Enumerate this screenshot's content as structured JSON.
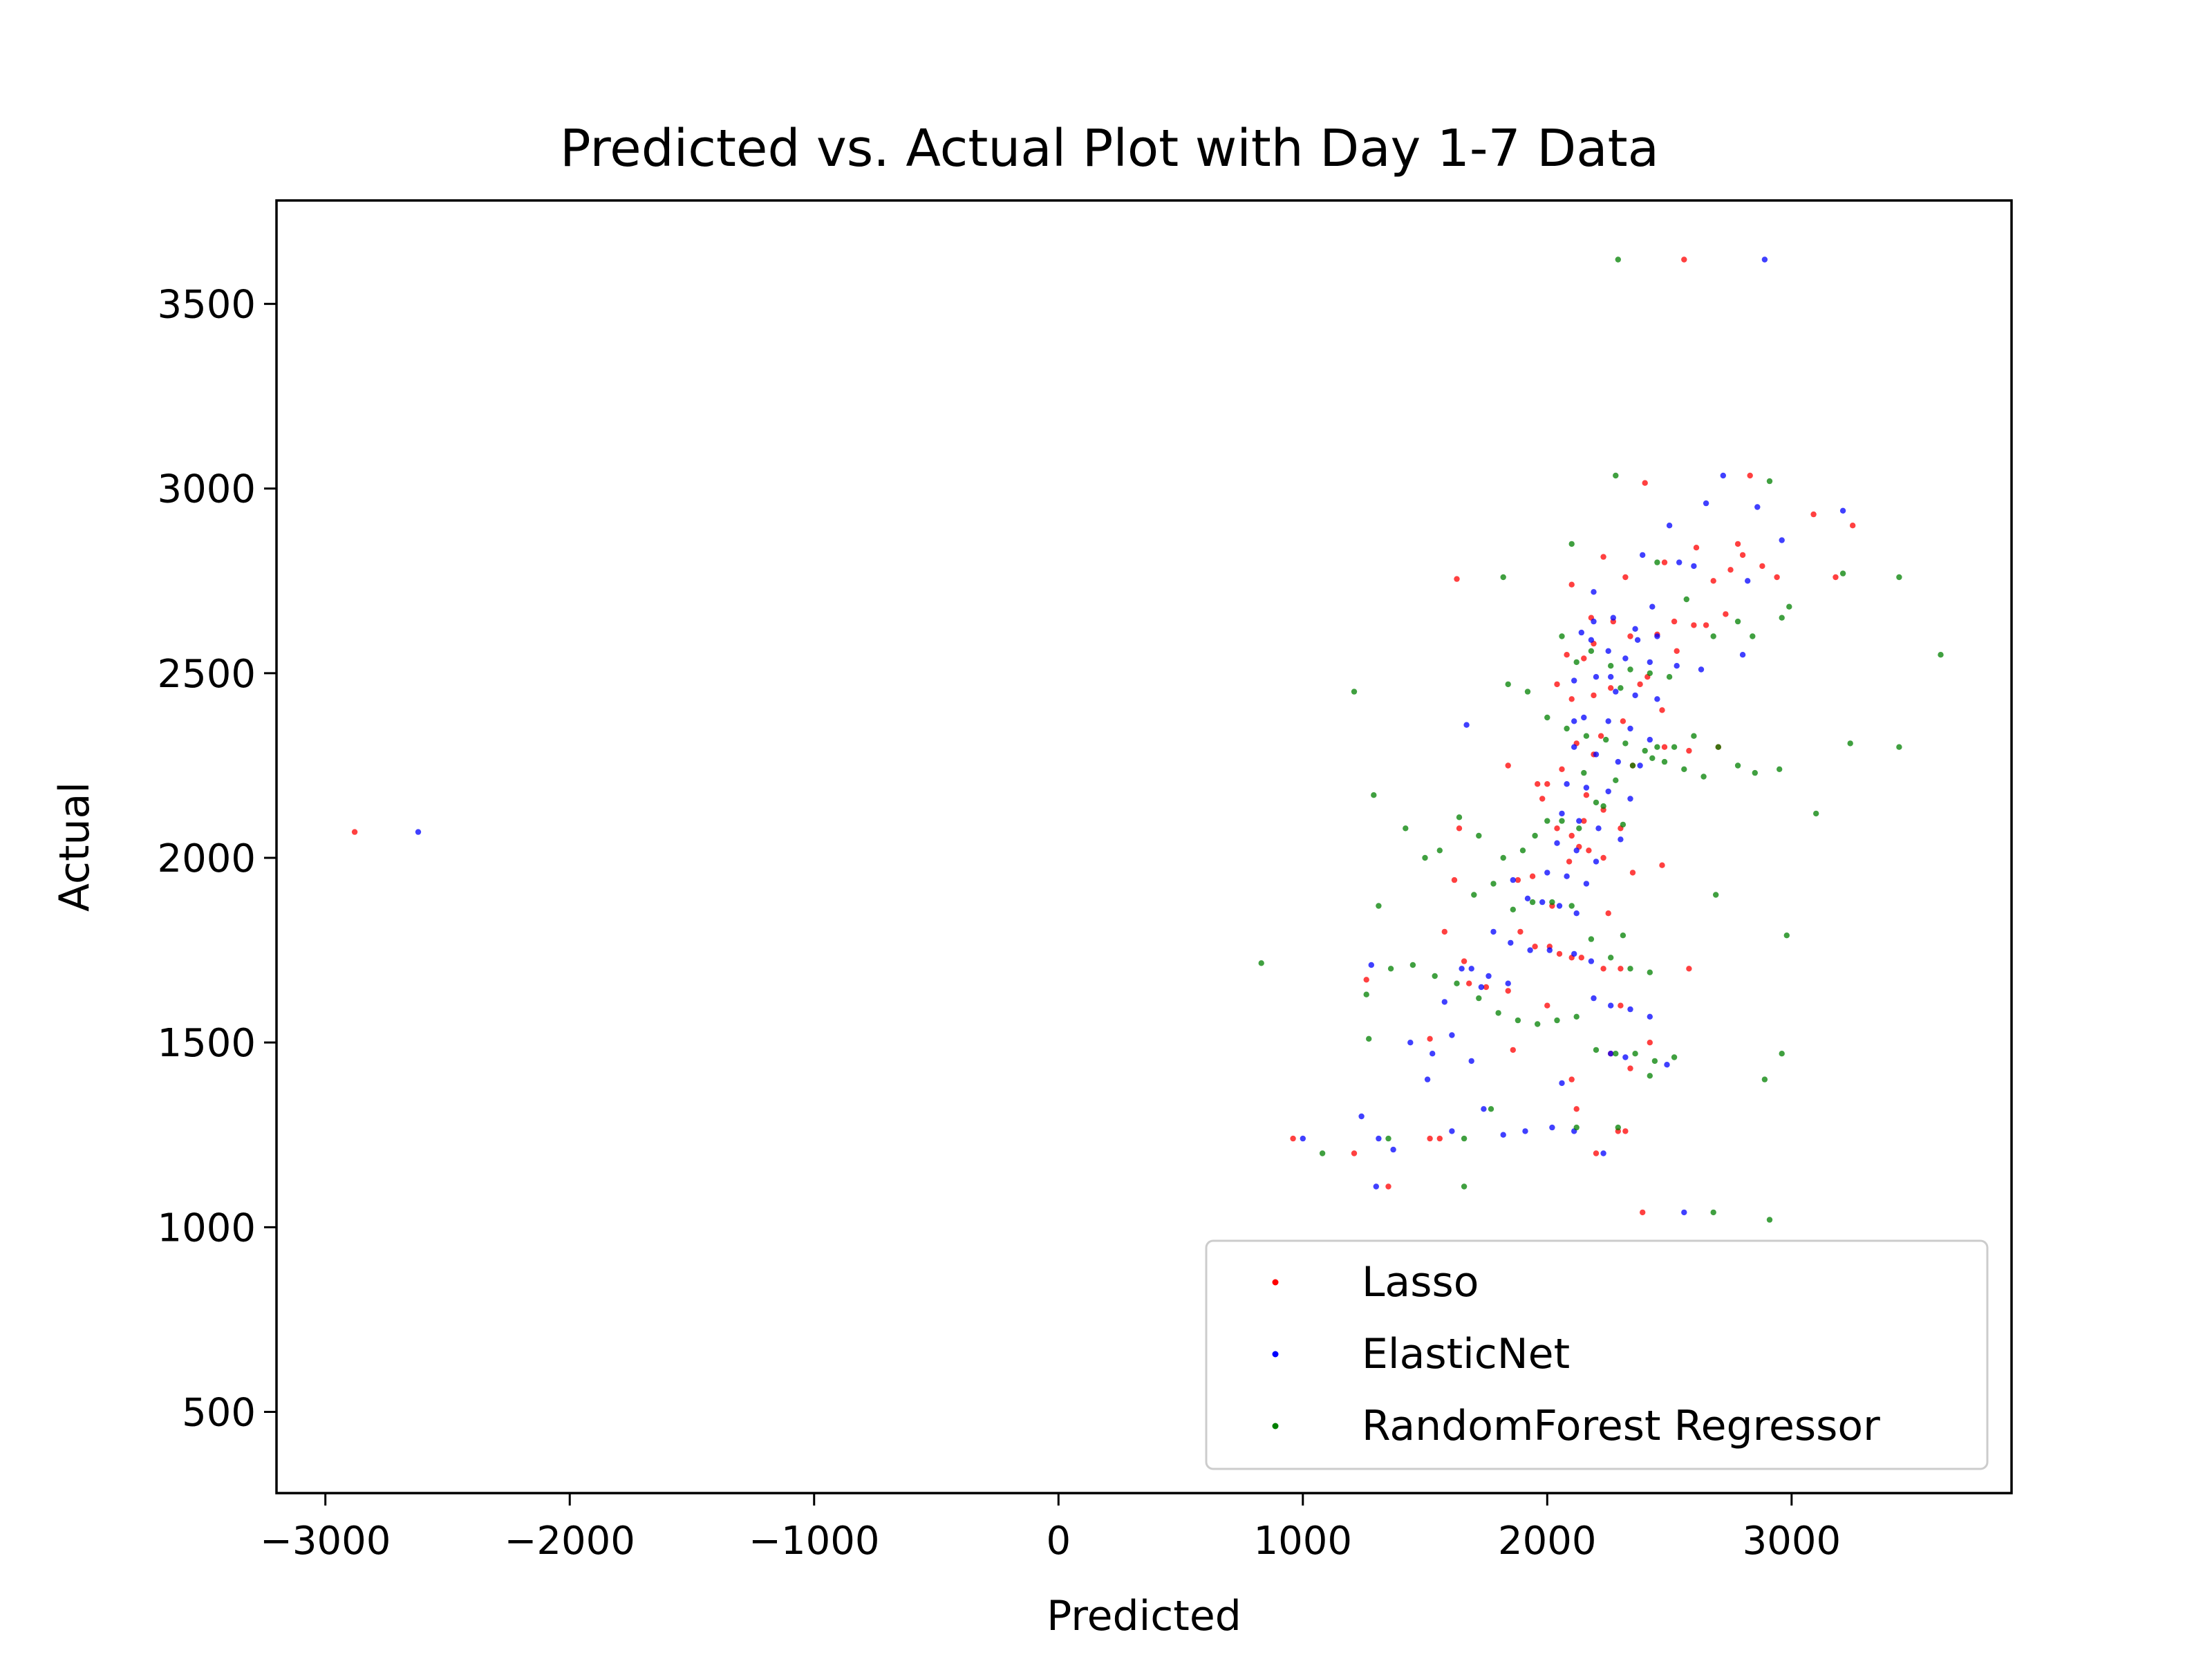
{
  "chart_data": {
    "type": "scatter",
    "title": "Predicted vs. Actual Plot with Day 1-7 Data",
    "xlabel": "Predicted",
    "ylabel": "Actual",
    "xlim": [
      -3200,
      3900
    ],
    "ylim": [
      280,
      3780
    ],
    "xticks": [
      -3000,
      -2000,
      -1000,
      0,
      1000,
      2000,
      3000
    ],
    "xtick_labels": [
      "−3000",
      "−2000",
      "−1000",
      "0",
      "1000",
      "2000",
      "3000"
    ],
    "yticks": [
      500,
      1000,
      1500,
      2000,
      2500,
      3000,
      3500
    ],
    "ytick_labels": [
      "500",
      "1000",
      "1500",
      "2000",
      "2500",
      "3000",
      "3500"
    ],
    "grid": false,
    "legend_position": "lower-right",
    "series": [
      {
        "name": "Lasso",
        "color": "#ff0000",
        "x": [
          2560,
          2830,
          3090,
          3250,
          2400,
          1630,
          2100,
          2320,
          2230,
          2180,
          2270,
          2450,
          2530,
          2600,
          2730,
          2780,
          2520,
          2190,
          2340,
          2080,
          2150,
          2260,
          2410,
          2040,
          2380,
          2100,
          2470,
          2310,
          2220,
          2120,
          2190,
          2700,
          2580,
          2480,
          2350,
          2060,
          2000,
          1980,
          2160,
          2230,
          2150,
          2300,
          2040,
          2100,
          2130,
          2170,
          2090,
          2230,
          2470,
          2350,
          1940,
          1880,
          1840,
          2250,
          2020,
          1890,
          1950,
          2010,
          2050,
          2100,
          2140,
          2230,
          2300,
          1520,
          1580,
          1660,
          1750,
          1840,
          1620,
          2000,
          2300,
          2420,
          2580,
          2260,
          1260,
          1520,
          1680,
          1860,
          2120,
          2320,
          2200,
          2100,
          2340,
          1560,
          2290,
          1350,
          960,
          1210,
          2390,
          -2880,
          2800,
          2750,
          2680,
          2940,
          1640,
          2650,
          3180,
          2880,
          2480,
          2190,
          1960,
          2610
        ],
        "y": [
          3620,
          3035,
          2930,
          2900,
          3015,
          2755,
          2740,
          2760,
          2815,
          2650,
          2640,
          2605,
          2560,
          2630,
          2660,
          2850,
          2640,
          2580,
          2600,
          2550,
          2540,
          2460,
          2490,
          2470,
          2470,
          2430,
          2400,
          2370,
          2330,
          2310,
          2280,
          2300,
          2290,
          2300,
          2250,
          2240,
          2200,
          2160,
          2170,
          2130,
          2100,
          2080,
          2080,
          2060,
          2030,
          2020,
          1990,
          2000,
          1980,
          1960,
          1950,
          1940,
          2250,
          1850,
          1870,
          1800,
          1760,
          1760,
          1740,
          1730,
          1730,
          1700,
          1700,
          1510,
          1800,
          1720,
          1650,
          1640,
          1940,
          1600,
          1600,
          1500,
          1700,
          1470,
          1670,
          1240,
          1660,
          1480,
          1320,
          1260,
          1200,
          1400,
          1430,
          1240,
          1260,
          1110,
          1240,
          1200,
          1040,
          2070,
          2820,
          2780,
          2750,
          2760,
          2080,
          2630,
          2760,
          2790,
          2800,
          2440,
          2200,
          2840
        ]
      },
      {
        "name": "ElasticNet",
        "color": "#0000ff",
        "x": [
          2890,
          2720,
          2860,
          3210,
          2390,
          2500,
          2600,
          2820,
          2190,
          2270,
          2360,
          2450,
          2140,
          2180,
          2250,
          2320,
          2420,
          2530,
          2630,
          2110,
          2200,
          2280,
          2360,
          2450,
          2150,
          2250,
          2340,
          2420,
          2110,
          2200,
          2290,
          2380,
          2080,
          2160,
          2250,
          2340,
          2060,
          2130,
          2210,
          2300,
          2040,
          2120,
          2200,
          2000,
          2080,
          2160,
          1860,
          1920,
          1980,
          2050,
          2120,
          1780,
          1850,
          1930,
          2010,
          1690,
          1760,
          1840,
          2190,
          2260,
          2340,
          2420,
          1580,
          1650,
          1730,
          2110,
          2180,
          1440,
          1530,
          1610,
          1690,
          1240,
          1310,
          1370,
          1510,
          1610,
          1740,
          1820,
          1910,
          2020,
          2260,
          2320,
          2490,
          1000,
          1300,
          2060,
          2110,
          2230,
          -2620,
          2560,
          2960,
          2190,
          1280,
          2800,
          1670,
          2430,
          2650,
          2260,
          2110,
          2370,
          2540
        ],
        "y": [
          3620,
          3035,
          2950,
          2940,
          2820,
          2900,
          2790,
          2750,
          2720,
          2650,
          2620,
          2600,
          2610,
          2590,
          2560,
          2540,
          2530,
          2520,
          2510,
          2480,
          2490,
          2450,
          2440,
          2430,
          2380,
          2370,
          2350,
          2320,
          2300,
          2280,
          2260,
          2250,
          2200,
          2190,
          2180,
          2160,
          2120,
          2100,
          2080,
          2050,
          2040,
          2020,
          1990,
          1960,
          1950,
          1930,
          1940,
          1890,
          1880,
          1870,
          1850,
          1800,
          1770,
          1750,
          1750,
          1700,
          1680,
          1660,
          1620,
          1600,
          1590,
          1570,
          1610,
          1700,
          1650,
          1740,
          1720,
          1500,
          1470,
          1520,
          1450,
          1300,
          1240,
          1210,
          1400,
          1260,
          1320,
          1250,
          1260,
          1270,
          1470,
          1460,
          1440,
          1240,
          1110,
          1390,
          1260,
          1200,
          2070,
          1040,
          2860,
          2640,
          1710,
          2550,
          2360,
          2680,
          2960,
          2490,
          2370,
          2590,
          2800
        ],
        "note": ""
      },
      {
        "name": "RandomForest Regressor",
        "color": "#008000",
        "x": [
          2290,
          2280,
          2910,
          3440,
          3610,
          3210,
          3240,
          2990,
          2960,
          2780,
          2840,
          2680,
          2570,
          2450,
          2100,
          1820,
          1210,
          1290,
          1260,
          1310,
          1420,
          1500,
          1560,
          1640,
          1720,
          1820,
          1900,
          1950,
          2000,
          2060,
          2130,
          2200,
          2280,
          2350,
          2430,
          2520,
          2600,
          2700,
          2780,
          2850,
          2950,
          2060,
          2120,
          2180,
          2260,
          2340,
          2420,
          2500,
          1840,
          1920,
          2000,
          2080,
          2160,
          2240,
          2320,
          2400,
          2480,
          2560,
          2640,
          1700,
          1780,
          1860,
          1940,
          2020,
          2100,
          2180,
          2260,
          2340,
          2420,
          1360,
          1450,
          1540,
          1630,
          1720,
          1800,
          1880,
          1960,
          2040,
          2120,
          2200,
          2280,
          2360,
          2440,
          2520,
          830,
          1080,
          1270,
          1350,
          1660,
          1770,
          2120,
          2290,
          2310,
          2890,
          2680,
          2420,
          3100,
          3440,
          2980,
          2910,
          2690,
          2150,
          2230,
          2310,
          1660,
          2960,
          2450,
          2300
        ],
        "y": [
          3620,
          3035,
          3020,
          2760,
          2550,
          2770,
          2310,
          2680,
          2650,
          2640,
          2600,
          2600,
          2700,
          2800,
          2850,
          2760,
          2450,
          2170,
          1630,
          1870,
          2080,
          2000,
          2020,
          2110,
          2060,
          2000,
          2020,
          2060,
          2100,
          2100,
          2080,
          2150,
          2210,
          2250,
          2270,
          2300,
          2330,
          2300,
          2250,
          2230,
          2240,
          2600,
          2530,
          2560,
          2520,
          2510,
          2500,
          2490,
          2470,
          2450,
          2380,
          2350,
          2330,
          2320,
          2310,
          2290,
          2260,
          2240,
          2220,
          1900,
          1930,
          1860,
          1880,
          1880,
          1870,
          1780,
          1730,
          1700,
          1690,
          1700,
          1710,
          1680,
          1660,
          1620,
          1580,
          1560,
          1550,
          1560,
          1570,
          1480,
          1470,
          1470,
          1450,
          1460,
          1715,
          1200,
          1510,
          1240,
          1110,
          1320,
          1270,
          1270,
          1790,
          1400,
          1040,
          1410,
          2120,
          2300,
          1790,
          1020,
          1900,
          2230,
          2140,
          2090,
          1240,
          1470,
          2300,
          2460
        ]
      }
    ]
  }
}
